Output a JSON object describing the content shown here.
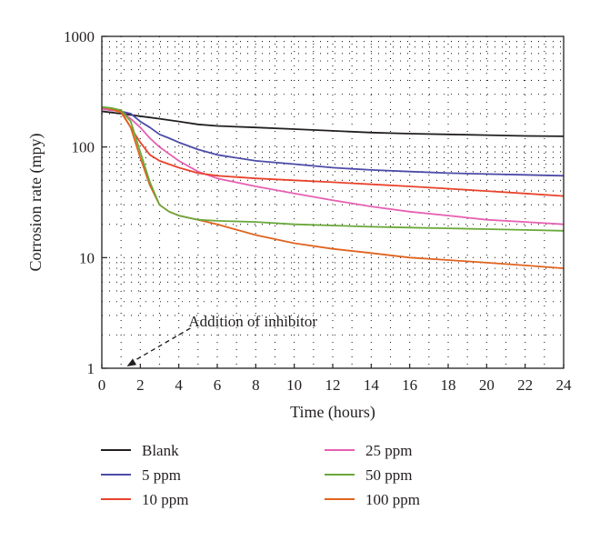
{
  "chart_data": {
    "type": "line",
    "xlabel": "Time (hours)",
    "ylabel": "Corrosion rate (mpy)",
    "y_scale": "log",
    "xlim": [
      0,
      24
    ],
    "ylim": [
      1,
      1000
    ],
    "x_ticks": [
      "0",
      "2",
      "4",
      "6",
      "8",
      "10",
      "12",
      "14",
      "16",
      "18",
      "20",
      "22",
      "24"
    ],
    "y_ticks": [
      "1",
      "10",
      "100",
      "1000"
    ],
    "grid": "dotted",
    "legend_position": "bottom",
    "annotation": {
      "text": "Addition of inhibitor",
      "x": 1.3,
      "y": 1
    },
    "series": [
      {
        "name": "Blank",
        "color": "#231f20",
        "x": [
          0,
          0.5,
          1,
          1.5,
          2,
          2.5,
          3,
          4,
          5,
          6,
          8,
          10,
          12,
          14,
          16,
          18,
          20,
          22,
          24
        ],
        "values": [
          210,
          205,
          200,
          195,
          190,
          185,
          180,
          170,
          160,
          155,
          150,
          145,
          140,
          135,
          132,
          130,
          128,
          126,
          125
        ]
      },
      {
        "name": "5 ppm",
        "color": "#4c4ba8",
        "x": [
          0,
          0.5,
          1,
          1.5,
          2,
          2.5,
          3,
          3.5,
          4,
          5,
          6,
          8,
          10,
          12,
          14,
          16,
          18,
          20,
          22,
          24
        ],
        "values": [
          220,
          215,
          210,
          200,
          170,
          150,
          130,
          120,
          110,
          95,
          85,
          75,
          70,
          65,
          62,
          60,
          58,
          57,
          56,
          55
        ]
      },
      {
        "name": "10 ppm",
        "color": "#e8432c",
        "x": [
          0,
          0.5,
          1,
          1.5,
          2,
          2.5,
          3,
          4,
          5,
          6,
          8,
          10,
          12,
          14,
          16,
          18,
          20,
          22,
          24
        ],
        "values": [
          230,
          220,
          210,
          150,
          110,
          85,
          75,
          65,
          58,
          55,
          52,
          50,
          48,
          46,
          44,
          42,
          40,
          38,
          36
        ]
      },
      {
        "name": "25 ppm",
        "color": "#e660b2",
        "x": [
          0,
          0.5,
          1,
          1.5,
          2,
          2.5,
          3,
          4,
          5,
          6,
          8,
          10,
          12,
          14,
          16,
          18,
          20,
          22,
          24
        ],
        "values": [
          220,
          215,
          210,
          180,
          150,
          120,
          100,
          75,
          60,
          52,
          44,
          38,
          33,
          29,
          26,
          24,
          22,
          21,
          20
        ]
      },
      {
        "name": "50 ppm",
        "color": "#6aa83a",
        "x": [
          0,
          0.5,
          1,
          1.5,
          2,
          2.5,
          3,
          3.5,
          4,
          5,
          6,
          8,
          10,
          12,
          14,
          16,
          18,
          20,
          22,
          24
        ],
        "values": [
          230,
          225,
          215,
          170,
          90,
          48,
          30,
          26,
          24,
          22,
          21.5,
          21,
          20,
          19.5,
          19,
          18.7,
          18.4,
          18.1,
          17.8,
          17.5
        ]
      },
      {
        "name": "100 ppm",
        "color": "#e0631f",
        "x": [
          0,
          0.5,
          1,
          1.5,
          2,
          2.5,
          3,
          3.5,
          4,
          5,
          6,
          8,
          10,
          12,
          14,
          16,
          18,
          20,
          22,
          24
        ],
        "values": [
          230,
          220,
          205,
          150,
          80,
          45,
          30,
          26,
          24,
          22,
          20,
          16,
          13.5,
          12,
          11,
          10,
          9.5,
          9,
          8.5,
          8
        ]
      }
    ]
  }
}
